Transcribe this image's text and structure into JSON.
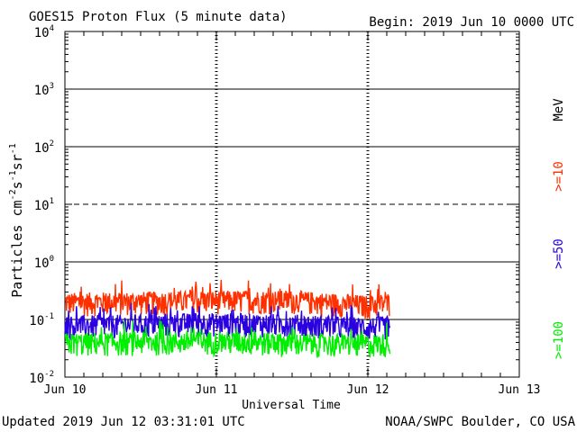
{
  "chart_data": {
    "type": "line",
    "title": "GOES15 Proton Flux (5 minute data)",
    "begin_label": "Begin: 2019 Jun 10 0000 UTC",
    "ylabel_main": "Particles cm",
    "ylabel_exp1": "-2",
    "ylabel_mid1": "s",
    "ylabel_exp2": "-1",
    "ylabel_mid2": "sr",
    "ylabel_exp3": "-1",
    "xlabel": "Universal Time",
    "y_scale": "log",
    "ylim": [
      0.01,
      10000
    ],
    "y_ticks": [
      {
        "base": "10",
        "exp": "4"
      },
      {
        "base": "10",
        "exp": "3"
      },
      {
        "base": "10",
        "exp": "2"
      },
      {
        "base": "10",
        "exp": "1"
      },
      {
        "base": "10",
        "exp": "0"
      },
      {
        "base": "10",
        "exp": "-1"
      },
      {
        "base": "10",
        "exp": "-2"
      }
    ],
    "x_start": "2019-06-10 00:00",
    "x_end": "2019-06-13 00:00",
    "x_ticks": [
      "Jun 10",
      "Jun 11",
      "Jun 12",
      "Jun 13"
    ],
    "data_end": "2019-06-12 03:30",
    "series": [
      {
        "name": ">=10 MeV",
        "color": "#ff3000",
        "x": [
          "2019-06-10 00:00",
          "2019-06-10 12:00",
          "2019-06-11 00:00",
          "2019-06-11 12:00",
          "2019-06-12 00:00",
          "2019-06-12 03:30"
        ],
        "values": [
          0.2,
          0.21,
          0.22,
          0.22,
          0.18,
          0.2
        ]
      },
      {
        "name": ">=50 MeV",
        "color": "#2a00e0",
        "x": [
          "2019-06-10 00:00",
          "2019-06-10 12:00",
          "2019-06-11 00:00",
          "2019-06-11 12:00",
          "2019-06-12 00:00",
          "2019-06-12 03:30"
        ],
        "values": [
          0.08,
          0.085,
          0.09,
          0.085,
          0.075,
          0.08
        ]
      },
      {
        "name": ">=100 MeV",
        "color": "#00ee00",
        "x": [
          "2019-06-10 00:00",
          "2019-06-10 12:00",
          "2019-06-11 00:00",
          "2019-06-11 12:00",
          "2019-06-12 00:00",
          "2019-06-12 03:30"
        ],
        "values": [
          0.04,
          0.042,
          0.043,
          0.04,
          0.038,
          0.04
        ]
      }
    ],
    "reference_lines": [
      {
        "value": 10,
        "style": "dashed"
      },
      {
        "value": 1000,
        "style": "solid"
      },
      {
        "value": 100,
        "style": "solid"
      },
      {
        "value": 1,
        "style": "solid"
      },
      {
        "value": 0.1,
        "style": "solid"
      }
    ],
    "right_labels": [
      {
        "text": "MeV",
        "color": "#000000"
      },
      {
        "text": ">=10",
        "color": "#ff3000"
      },
      {
        "text": ">=50",
        "color": "#2a00e0"
      },
      {
        "text": ">=100",
        "color": "#00ee00"
      }
    ],
    "grid": "day separators dotted"
  },
  "footer": {
    "updated": "Updated 2019 Jun 12 03:31:01 UTC",
    "credit": "NOAA/SWPC Boulder, CO USA"
  }
}
